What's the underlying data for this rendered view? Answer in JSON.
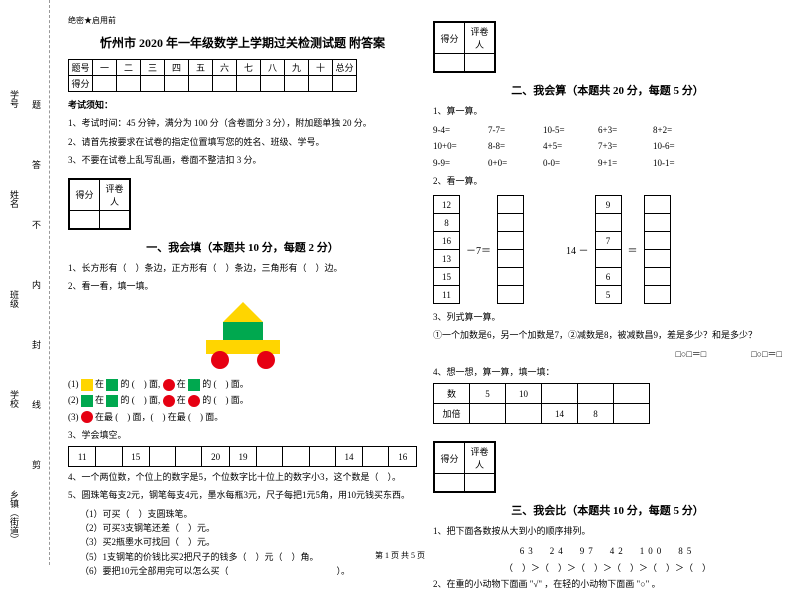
{
  "header_note": "绝密★启用前",
  "title": "忻州市 2020 年一年级数学上学期过关检测试题 附答案",
  "score_table": {
    "cols": [
      "题号",
      "一",
      "二",
      "三",
      "四",
      "五",
      "六",
      "七",
      "八",
      "九",
      "十",
      "总分"
    ],
    "row_label": "得分"
  },
  "instructions": {
    "heading": "考试须知：",
    "items": [
      "1、考试时间：45 分钟，满分为 100 分（含卷面分 3 分），附加题单独 20 分。",
      "2、请首先按要求在试卷的指定位置填写您的姓名、班级、学号。",
      "3、不要在试卷上乱写乱画，卷面不整洁扣 3 分。"
    ]
  },
  "score_box": {
    "c1": "得分",
    "c2": "评卷人"
  },
  "section1": {
    "title": "一、我会填（本题共 10 分，每题 2 分）",
    "q1": "1、长方形有（　）条边，正方形有（　）条边，三角形有（　）边。",
    "q2": "2、看一看，填一填。",
    "shape_colors": {
      "triangle": "#ffd500",
      "square": "#00a84f",
      "rect": "#ffd500",
      "circle": "#e60012"
    },
    "desc1_a": "(1)",
    "desc1_b": "在",
    "desc1_c": "的 (　) 面,",
    "desc1_d": "在",
    "desc1_e": "的 (　) 面。",
    "desc2_a": "(2)",
    "desc2_b": "在",
    "desc2_c": "的 (　) 面,",
    "desc2_d": "在",
    "desc2_e": "的 (　) 面。",
    "desc3_a": "(3)",
    "desc3_b": "在最 (　) 面，(　) 在最 (　) 面。",
    "q3": "3、学会填空。",
    "num_seq": [
      "11",
      "",
      "15",
      "",
      "",
      "20",
      "19",
      "",
      "",
      "",
      "14",
      "",
      "16"
    ],
    "q4": "4、一个两位数，个位上的数字是5，个位数字比十位上的数字小3，这个数是（　）。",
    "q5": "5、圆珠笔每支2元，钢笔每支4元，墨水每瓶3元，尺子每把1元5角，用10元钱买东西。",
    "q5_subs": [
      "（1）可买（　）支圆珠笔。",
      "（2）可买3支钢笔还差（　）元。",
      "（3）买2瓶墨水可找回（　）元。",
      "（5）1支钢笔的价钱比买2把尺子的钱多（　）元（　）角。",
      "（6）要把10元全部用完可以怎么买（　　　　　　　　　　　　）。"
    ]
  },
  "section2": {
    "title": "二、我会算（本题共 20 分，每题 5 分）",
    "q1": "1、算一算。",
    "calcs": [
      [
        "9-4=",
        "7-7=",
        "10-5=",
        "6+3=",
        "8+2="
      ],
      [
        "10+0=",
        "8-8=",
        "4+5=",
        "7+3=",
        "10-6="
      ],
      [
        "9-9=",
        "0+0=",
        "0-0=",
        "9+1=",
        "10-1="
      ]
    ],
    "q2": "2、看一算。",
    "left_vals": [
      "12",
      "8",
      "16",
      "13",
      "15",
      "11"
    ],
    "minus_left": "－7＝",
    "right_vals": [
      "9",
      "",
      "7",
      "",
      "6",
      "5"
    ],
    "minus_right": "14 －",
    "eq": "＝",
    "q3": "3、列式算一算。",
    "q3a": "①一个加数是6，另一个加数是7，②减数是8，被减数昌9，差是多少？和是多少？",
    "q3b": "□○□＝□　　　　　□○□＝□",
    "q4": "4、想一想，算一算，填一填：",
    "double_table": {
      "row1": [
        "数",
        "5",
        "10",
        "",
        "",
        ""
      ],
      "row2": [
        "加倍",
        "",
        "",
        "14",
        "8",
        ""
      ]
    }
  },
  "section3": {
    "title": "三、我会比（本题共 10 分，每题 5 分）",
    "q1": "1、把下面各数按从大到小的顺序排列。",
    "nums": "63　24　97　42　100　85",
    "order": "（　）＞（　）＞（　）＞（　）＞（　）＞（　）",
    "q2": "2、在重的小动物下面画 \"√\" ，在轻的小动物下面画 \"○\" 。"
  },
  "binding": {
    "l1": "乡镇（街道）",
    "l2": "学校",
    "l3": "班级",
    "l4": "姓名",
    "l5": "学号",
    "cut": "剪",
    "line": "线",
    "seal": "封",
    "inner": "内",
    "no": "不",
    "ans": "答",
    "prob": "题"
  },
  "footer": "第 1 页 共 5 页"
}
